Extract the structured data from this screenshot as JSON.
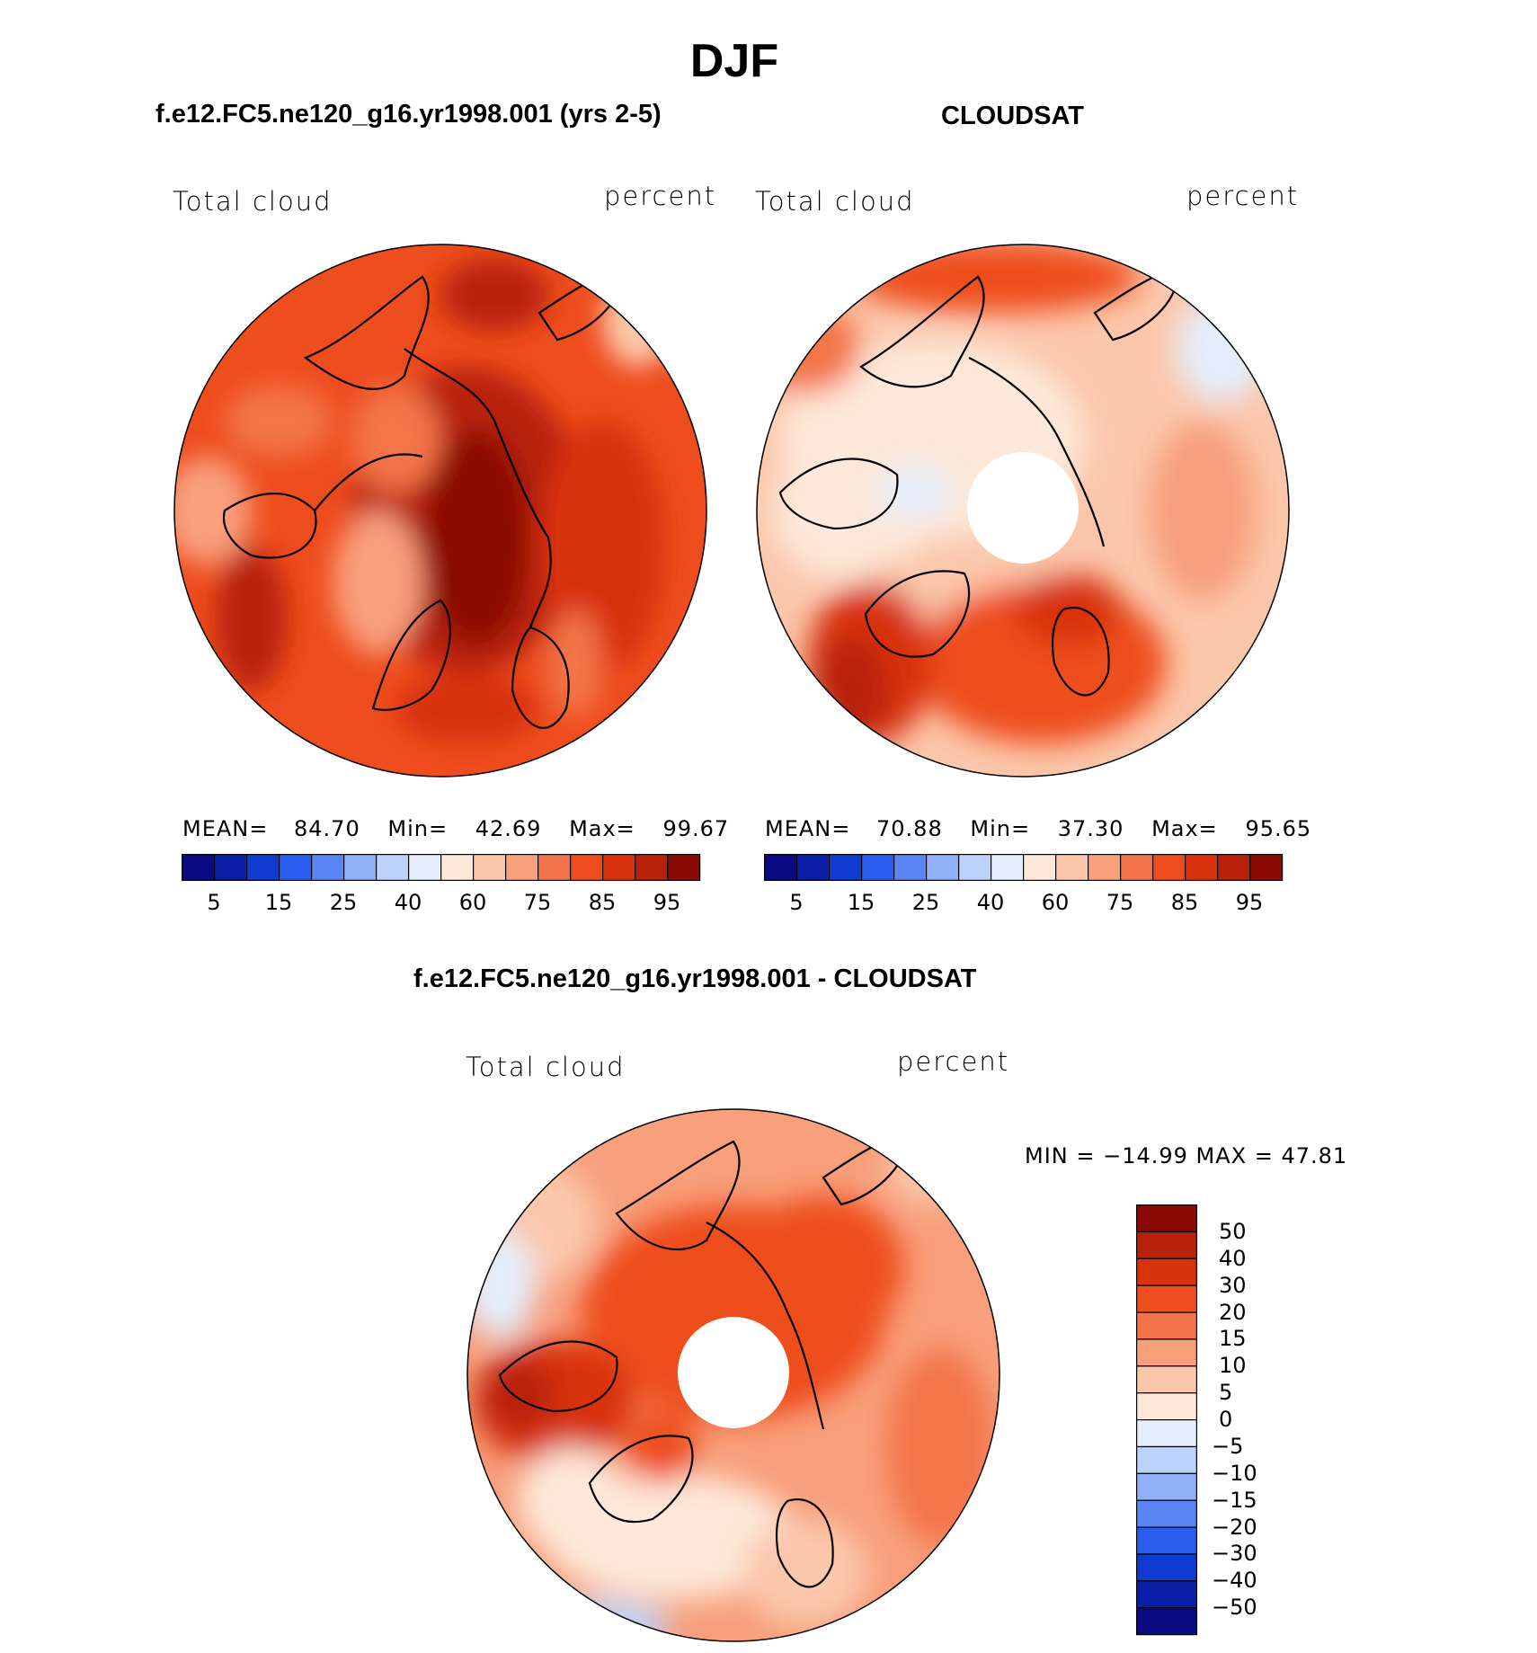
{
  "figure": {
    "title": "DJF"
  },
  "panels": [
    {
      "title": "f.e12.FC5.ne120_g16.yr1998.001 (yrs 2-5)",
      "left_label": "Total cloud",
      "right_label": "percent",
      "stats": {
        "mean_label": "MEAN=",
        "mean": "84.70",
        "min_label": "Min=",
        "min": "42.69",
        "max_label": "Max=",
        "max": "99.67"
      }
    },
    {
      "title": "CLOUDSAT",
      "left_label": "Total cloud",
      "right_label": "percent",
      "stats": {
        "mean_label": "MEAN=",
        "mean": "70.88",
        "min_label": "Min=",
        "min": "37.30",
        "max_label": "Max=",
        "max": "95.65"
      }
    },
    {
      "title": "f.e12.FC5.ne120_g16.yr1998.001 - CLOUDSAT",
      "left_label": "Total cloud",
      "right_label": "percent",
      "minmax": "MIN = −14.99 MAX =   47.81"
    }
  ],
  "colorbar_abs": {
    "ticks": [
      "5",
      "15",
      "25",
      "40",
      "60",
      "75",
      "85",
      "95"
    ],
    "colors": [
      "#0a0a82",
      "#0b1ea8",
      "#0f3bd0",
      "#2a5cf0",
      "#5a86f5",
      "#90b0f7",
      "#bcd2fa",
      "#e4eefc",
      "#fde8d9",
      "#fbc7ab",
      "#f89f7b",
      "#f3744a",
      "#ee4d1e",
      "#d8330d",
      "#b8210a",
      "#8a0a05"
    ]
  },
  "colorbar_diff": {
    "ticks": [
      "50",
      "40",
      "30",
      "20",
      "15",
      "10",
      "5",
      "0",
      "−5",
      "−10",
      "−15",
      "−20",
      "−30",
      "−40",
      "−50"
    ],
    "colors": [
      "#8a0a05",
      "#b8210a",
      "#d8330d",
      "#ee4d1e",
      "#f3744a",
      "#f89f7b",
      "#fbc7ab",
      "#fde8d9",
      "#e4eefc",
      "#bcd2fa",
      "#90b0f7",
      "#5a86f5",
      "#2a5cf0",
      "#0f3bd0",
      "#0b1ea8",
      "#0a0a82"
    ]
  }
}
